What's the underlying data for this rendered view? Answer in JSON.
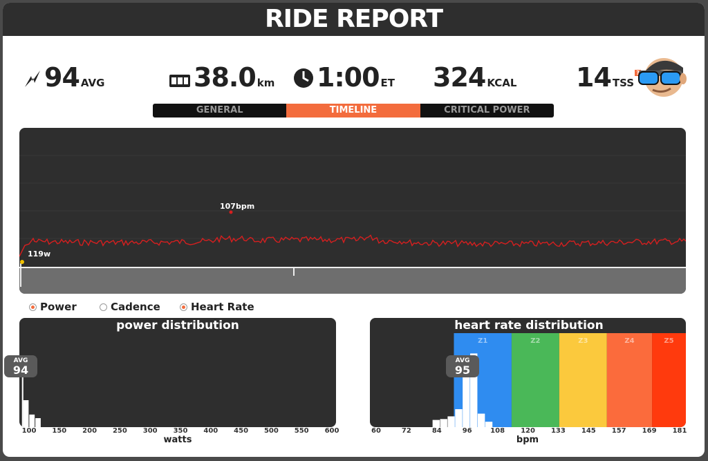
{
  "header": {
    "title": "RIDE REPORT"
  },
  "stats": {
    "power": {
      "value": "94",
      "unit": "AVG"
    },
    "distance": {
      "value": "38.0",
      "unit": "km"
    },
    "time": {
      "value": "1:00",
      "unit": "ET"
    },
    "calories": {
      "value": "324",
      "unit": "KCAL"
    },
    "tss": {
      "value": "14",
      "unit": "TSS",
      "help": "?"
    }
  },
  "tabs": [
    {
      "label": "GENERAL",
      "active": false
    },
    {
      "label": "TIMELINE",
      "active": true
    },
    {
      "label": "CRITICAL POWER",
      "active": false
    }
  ],
  "timeline": {
    "hr_marker_label": "107bpm",
    "power_marker_label": "119w",
    "hr_color": "#d61f1f",
    "power_color": "#f2c200"
  },
  "legend": [
    {
      "label": "Power",
      "checked": true
    },
    {
      "label": "Cadence",
      "checked": false
    },
    {
      "label": "Heart Rate",
      "checked": true
    }
  ],
  "power_distribution": {
    "title": "power distribution",
    "avg_label": "AVG",
    "avg_value": "94",
    "xlabel": "watts",
    "ticks": [
      "100",
      "150",
      "200",
      "250",
      "300",
      "350",
      "400",
      "450",
      "500",
      "550",
      "600"
    ]
  },
  "hr_distribution": {
    "title": "heart rate distribution",
    "avg_label": "AVG",
    "avg_value": "95",
    "xlabel": "bpm",
    "ticks": [
      "60",
      "72",
      "84",
      "96",
      "108",
      "120",
      "133",
      "145",
      "157",
      "169",
      "181"
    ],
    "zones": [
      {
        "label": "Z1",
        "color": "#2f8cf0"
      },
      {
        "label": "Z2",
        "color": "#4ab858"
      },
      {
        "label": "Z3",
        "color": "#fbc93d"
      },
      {
        "label": "Z4",
        "color": "#fb6b3c"
      },
      {
        "label": "Z5",
        "color": "#ff3a0d"
      }
    ]
  },
  "chart_data": [
    {
      "type": "bar",
      "title": "power distribution",
      "xlabel": "watts",
      "xlim": [
        100,
        600
      ],
      "x": [
        100,
        110,
        120
      ],
      "values": [
        0.3,
        0.14,
        0.1
      ],
      "avg": 94
    },
    {
      "type": "bar",
      "title": "heart rate distribution",
      "xlabel": "bpm",
      "xlim": [
        60,
        181
      ],
      "x": [
        84,
        87,
        90,
        93,
        96,
        99,
        102,
        105
      ],
      "values": [
        0.08,
        0.09,
        0.12,
        0.2,
        0.78,
        0.82,
        0.15,
        0.06
      ],
      "avg": 95
    }
  ]
}
